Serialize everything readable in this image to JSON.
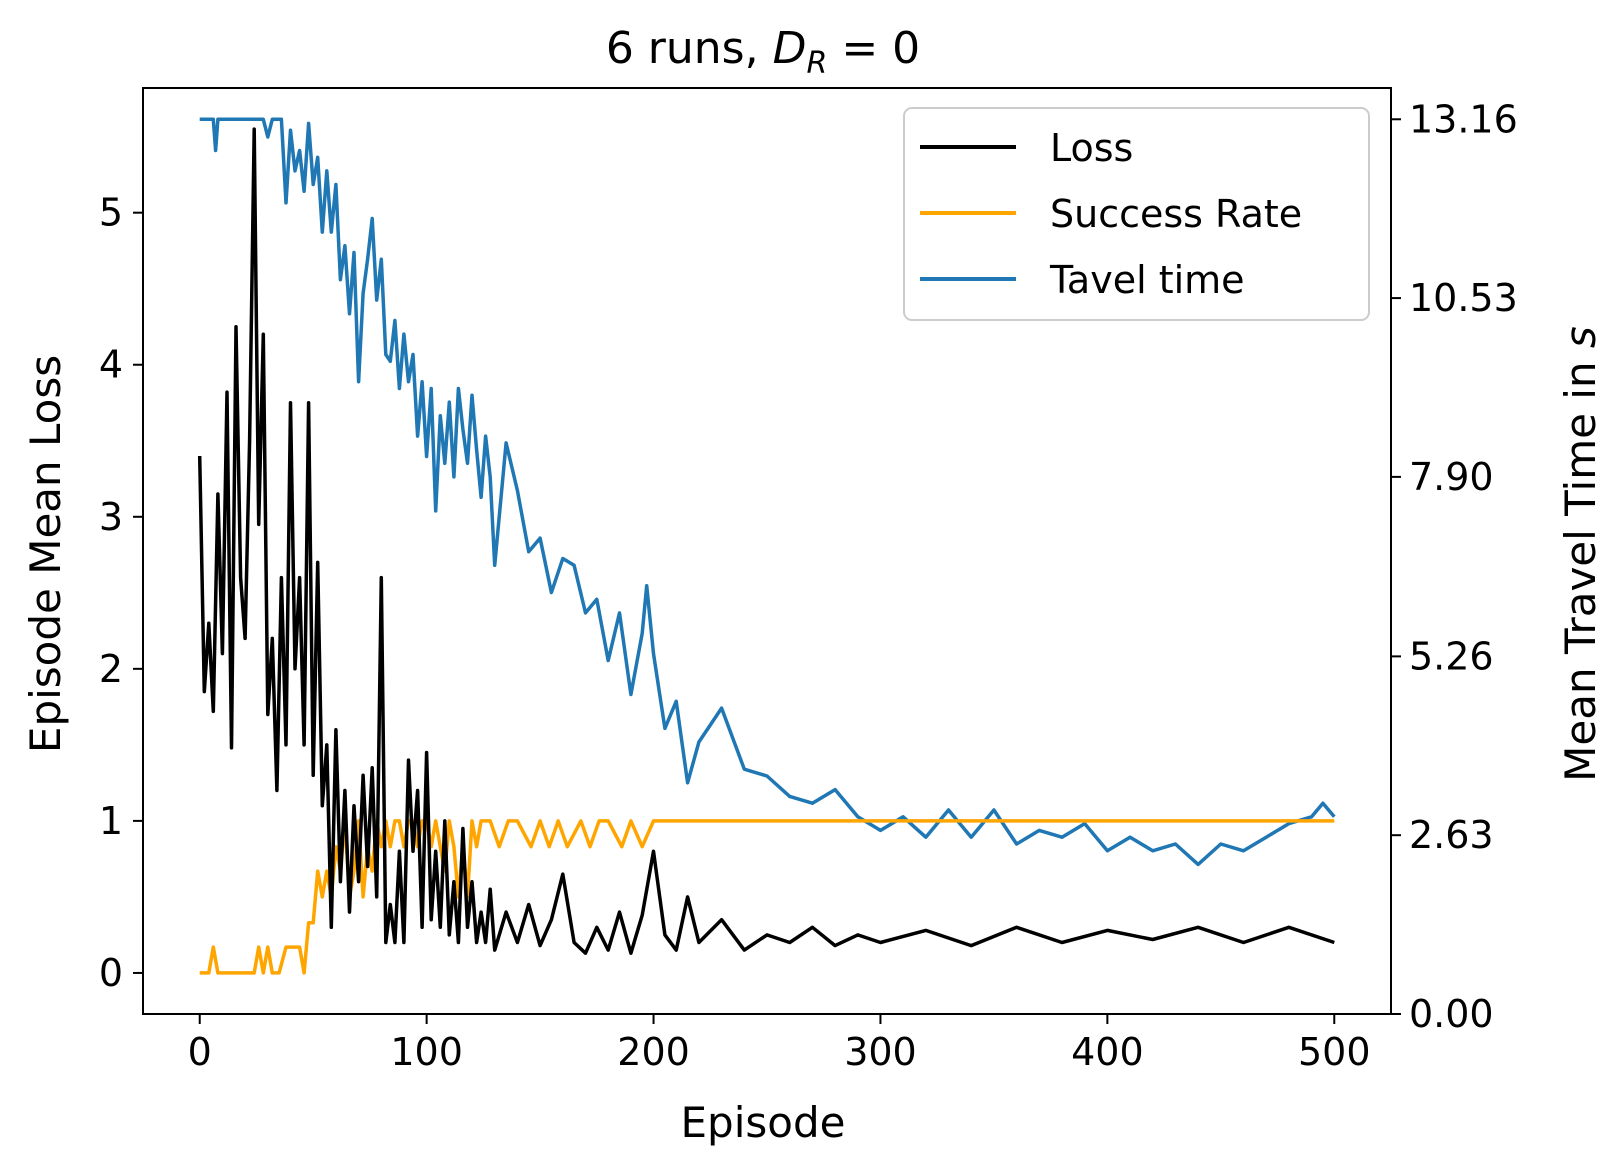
{
  "chart_data": {
    "type": "line",
    "title": "6 runs, D_R = 0",
    "title_parts": {
      "prefix": "6 runs, ",
      "symbol": "D",
      "subscript": "R",
      "suffix": " = 0"
    },
    "xlabel": "Episode",
    "ylabel": "Episode Mean Loss",
    "y2label": "Mean Travel Time in s",
    "y2label_parts": {
      "text": "Mean Travel Time in ",
      "italic": "s"
    },
    "xlim": [
      -25,
      525
    ],
    "ylim": [
      -0.27,
      5.82
    ],
    "y2lim": [
      0.0,
      13.62
    ],
    "xticks": [
      0,
      100,
      200,
      300,
      400,
      500
    ],
    "xtick_labels": [
      "0",
      "100",
      "200",
      "300",
      "400",
      "500"
    ],
    "yticks": [
      0,
      1,
      2,
      3,
      4,
      5
    ],
    "ytick_labels": [
      "0",
      "1",
      "2",
      "3",
      "4",
      "5"
    ],
    "y2ticks": [
      0.0,
      2.63,
      5.26,
      7.9,
      10.53,
      13.16
    ],
    "y2tick_labels": [
      "0.00",
      "2.63",
      "5.26",
      "7.90",
      "10.53",
      "13.16"
    ],
    "grid": false,
    "legend_position": "top-right",
    "series": [
      {
        "name": "Loss",
        "color": "#000000",
        "axis": "left",
        "x": [
          0,
          2,
          4,
          6,
          8,
          10,
          12,
          14,
          16,
          18,
          20,
          22,
          24,
          26,
          28,
          30,
          32,
          34,
          36,
          38,
          40,
          42,
          44,
          46,
          48,
          50,
          52,
          54,
          56,
          58,
          60,
          62,
          64,
          66,
          68,
          70,
          72,
          74,
          76,
          78,
          80,
          82,
          84,
          86,
          88,
          90,
          92,
          94,
          96,
          98,
          100,
          102,
          104,
          106,
          108,
          110,
          112,
          114,
          116,
          118,
          120,
          122,
          124,
          126,
          128,
          130,
          135,
          140,
          145,
          150,
          155,
          160,
          165,
          170,
          175,
          180,
          185,
          190,
          195,
          200,
          205,
          210,
          215,
          220,
          230,
          240,
          250,
          260,
          270,
          280,
          290,
          300,
          320,
          340,
          360,
          380,
          400,
          420,
          440,
          460,
          480,
          500
        ],
        "y": [
          3.4,
          1.85,
          2.3,
          1.72,
          3.15,
          2.1,
          3.82,
          1.48,
          4.25,
          2.6,
          2.2,
          3.5,
          5.55,
          2.95,
          4.2,
          1.7,
          2.2,
          1.2,
          2.6,
          1.5,
          3.75,
          2.0,
          2.6,
          1.5,
          3.75,
          1.3,
          2.7,
          1.1,
          1.5,
          0.3,
          1.6,
          0.6,
          1.2,
          0.4,
          1.1,
          0.6,
          1.3,
          0.7,
          1.35,
          0.5,
          2.6,
          0.2,
          0.45,
          0.2,
          0.8,
          0.2,
          1.4,
          0.8,
          1.2,
          0.3,
          1.45,
          0.35,
          0.8,
          0.3,
          1.0,
          0.25,
          0.6,
          0.2,
          0.95,
          0.3,
          0.6,
          0.2,
          0.4,
          0.2,
          0.55,
          0.15,
          0.4,
          0.2,
          0.45,
          0.18,
          0.35,
          0.65,
          0.2,
          0.13,
          0.3,
          0.15,
          0.4,
          0.13,
          0.38,
          0.8,
          0.25,
          0.15,
          0.5,
          0.2,
          0.35,
          0.15,
          0.25,
          0.2,
          0.3,
          0.18,
          0.25,
          0.2,
          0.28,
          0.18,
          0.3,
          0.2,
          0.28,
          0.22,
          0.3,
          0.2,
          0.3,
          0.2
        ]
      },
      {
        "name": "Success Rate",
        "color": "#ffa500",
        "axis": "left",
        "x": [
          0,
          4,
          6,
          8,
          12,
          24,
          26,
          28,
          30,
          32,
          35,
          38,
          40,
          44,
          46,
          48,
          50,
          52,
          54,
          56,
          58,
          60,
          62,
          64,
          66,
          68,
          70,
          72,
          74,
          76,
          78,
          80,
          82,
          84,
          86,
          88,
          90,
          92,
          94,
          96,
          98,
          100,
          102,
          104,
          106,
          108,
          110,
          112,
          114,
          116,
          118,
          120,
          122,
          124,
          128,
          132,
          136,
          140,
          146,
          150,
          154,
          158,
          162,
          168,
          172,
          176,
          180,
          186,
          190,
          195,
          200,
          205,
          300,
          400,
          500
        ],
        "y": [
          0.0,
          0.0,
          0.17,
          0.0,
          0.0,
          0.0,
          0.17,
          0.0,
          0.17,
          0.0,
          0.0,
          0.17,
          0.17,
          0.17,
          0.0,
          0.33,
          0.33,
          0.67,
          0.5,
          0.67,
          0.5,
          0.83,
          0.67,
          1.0,
          0.5,
          0.67,
          1.0,
          0.5,
          0.83,
          0.67,
          1.0,
          0.83,
          1.0,
          0.83,
          1.0,
          1.0,
          0.83,
          1.0,
          1.0,
          0.83,
          1.0,
          1.0,
          0.83,
          1.0,
          0.83,
          0.67,
          1.0,
          0.83,
          0.5,
          0.83,
          0.5,
          1.0,
          0.83,
          1.0,
          1.0,
          0.83,
          1.0,
          1.0,
          0.83,
          1.0,
          0.83,
          1.0,
          0.83,
          1.0,
          0.83,
          1.0,
          1.0,
          0.83,
          1.0,
          0.83,
          1.0,
          1.0,
          1.0,
          1.0,
          1.0
        ]
      },
      {
        "name": "Tavel time",
        "color": "#1f77b4",
        "axis": "right",
        "x": [
          0,
          3,
          6,
          7,
          8,
          12,
          16,
          20,
          24,
          28,
          30,
          32,
          34,
          36,
          38,
          40,
          42,
          44,
          46,
          48,
          50,
          52,
          54,
          56,
          58,
          60,
          62,
          64,
          66,
          68,
          70,
          72,
          74,
          76,
          78,
          80,
          82,
          84,
          86,
          88,
          90,
          92,
          94,
          96,
          98,
          100,
          102,
          104,
          106,
          108,
          110,
          112,
          114,
          116,
          118,
          120,
          122,
          124,
          126,
          128,
          130,
          135,
          140,
          145,
          150,
          155,
          160,
          165,
          170,
          175,
          180,
          185,
          190,
          195,
          197,
          200,
          205,
          210,
          215,
          220,
          230,
          240,
          250,
          260,
          270,
          280,
          290,
          300,
          310,
          320,
          330,
          340,
          350,
          360,
          370,
          380,
          390,
          400,
          410,
          420,
          430,
          440,
          450,
          460,
          470,
          480,
          490,
          495,
          500
        ],
        "y": [
          13.16,
          13.16,
          13.16,
          12.7,
          13.16,
          13.16,
          13.16,
          13.16,
          13.16,
          13.16,
          12.9,
          13.16,
          13.16,
          13.16,
          11.93,
          13.0,
          12.4,
          12.7,
          12.1,
          13.1,
          12.2,
          12.6,
          11.5,
          12.4,
          11.5,
          12.2,
          10.8,
          11.3,
          10.3,
          11.2,
          9.3,
          10.6,
          11.1,
          11.7,
          10.5,
          11.1,
          9.7,
          9.6,
          10.2,
          9.2,
          10.0,
          9.3,
          9.7,
          8.5,
          9.3,
          8.2,
          9.2,
          7.4,
          8.8,
          8.1,
          9.0,
          7.9,
          9.2,
          8.6,
          8.1,
          9.1,
          8.3,
          7.6,
          8.5,
          7.9,
          6.6,
          8.4,
          7.7,
          6.8,
          7.0,
          6.2,
          6.7,
          6.6,
          5.9,
          6.1,
          5.2,
          5.9,
          4.7,
          5.6,
          6.3,
          5.3,
          4.2,
          4.6,
          3.4,
          4.0,
          4.5,
          3.6,
          3.5,
          3.2,
          3.1,
          3.3,
          2.9,
          2.7,
          2.9,
          2.6,
          3.0,
          2.6,
          3.0,
          2.5,
          2.7,
          2.6,
          2.8,
          2.4,
          2.6,
          2.4,
          2.5,
          2.2,
          2.5,
          2.4,
          2.6,
          2.8,
          2.9,
          3.1,
          2.9
        ]
      }
    ]
  }
}
